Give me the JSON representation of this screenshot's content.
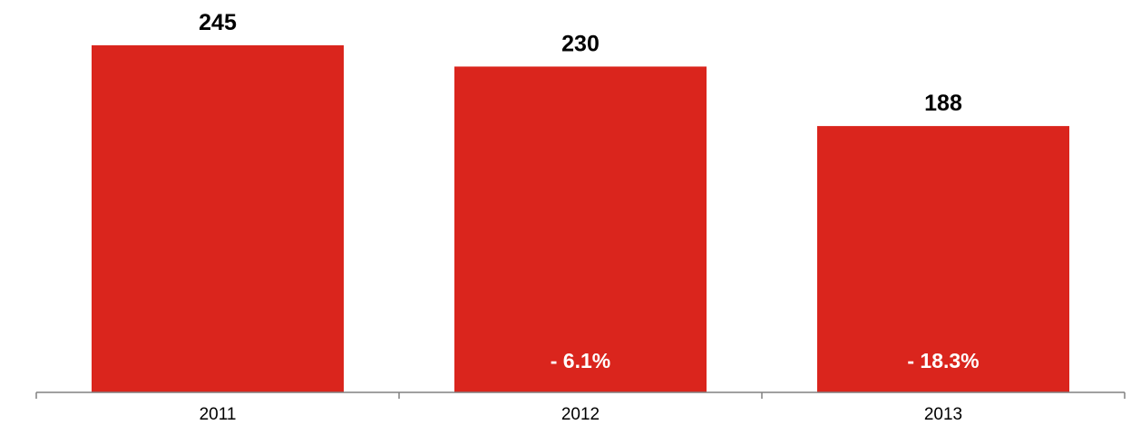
{
  "chart_data": {
    "type": "bar",
    "categories": [
      "2011",
      "2012",
      "2013"
    ],
    "values": [
      245,
      230,
      188
    ],
    "value_labels": [
      "245",
      "230",
      "188"
    ],
    "change_labels": [
      "",
      "- 6.1%",
      "- 18.3%"
    ],
    "title": "",
    "xlabel": "",
    "ylabel": "",
    "ylim": [
      0,
      245
    ],
    "grid": false,
    "legend": "none",
    "colors": {
      "bar": "#DA251D",
      "axis": "#808080",
      "value_text": "#000000",
      "change_text": "#FFFFFF"
    }
  }
}
